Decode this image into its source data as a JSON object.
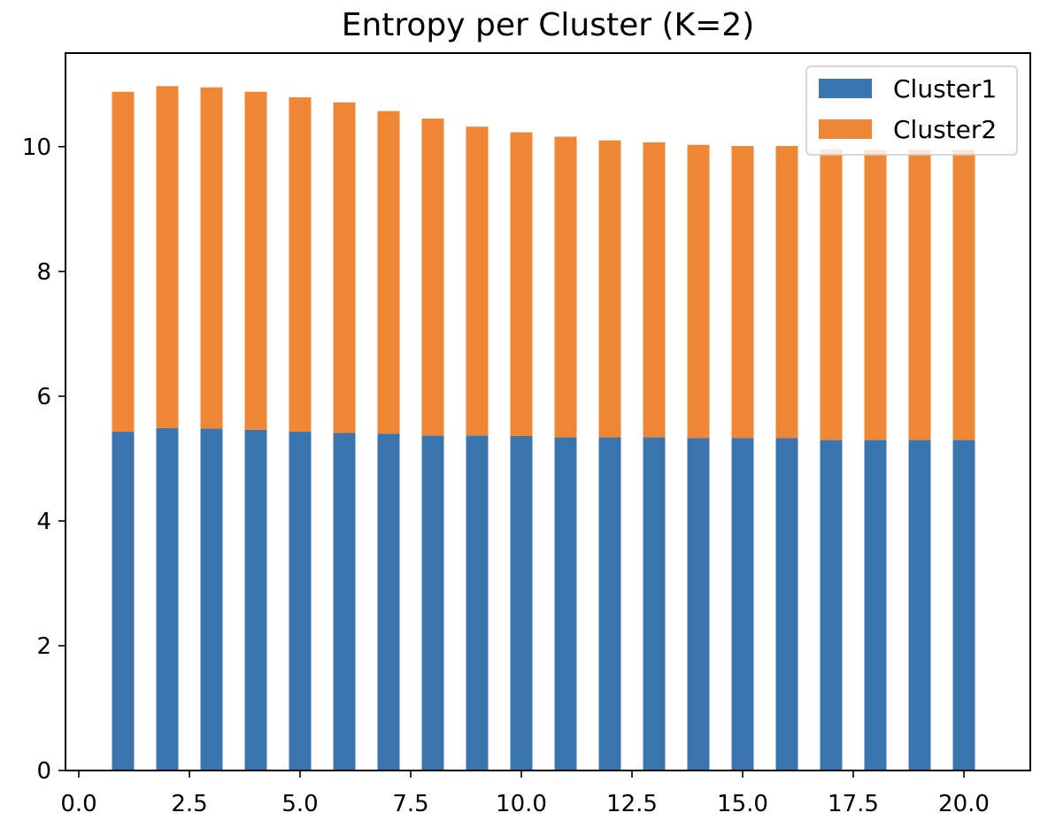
{
  "chart_data": {
    "type": "bar",
    "stacked": true,
    "title": "Entropy per Cluster (K=2)",
    "xlabel": "",
    "ylabel": "",
    "xlim": [
      -0.3,
      21.5
    ],
    "ylim": [
      0,
      11.5
    ],
    "x_ticks": [
      0.0,
      2.5,
      5.0,
      7.5,
      10.0,
      12.5,
      15.0,
      17.5,
      20.0
    ],
    "x_tick_labels": [
      "0.0",
      "2.5",
      "5.0",
      "7.5",
      "10.0",
      "12.5",
      "15.0",
      "17.5",
      "20.0"
    ],
    "y_ticks": [
      0,
      2,
      4,
      6,
      8,
      10
    ],
    "y_tick_labels": [
      "0",
      "2",
      "4",
      "6",
      "8",
      "10"
    ],
    "bar_width": 0.5,
    "grid": false,
    "legend_position": "top-right",
    "x": [
      1,
      2,
      3,
      4,
      5,
      6,
      7,
      8,
      9,
      10,
      11,
      12,
      13,
      14,
      15,
      16,
      17,
      18,
      19,
      20
    ],
    "series": [
      {
        "name": "Cluster1",
        "color": "#3a75b0",
        "values": [
          5.43,
          5.49,
          5.48,
          5.46,
          5.43,
          5.41,
          5.4,
          5.37,
          5.37,
          5.36,
          5.34,
          5.34,
          5.34,
          5.33,
          5.33,
          5.33,
          5.3,
          5.3,
          5.3,
          5.3
        ]
      },
      {
        "name": "Cluster2",
        "color": "#ef8636",
        "values": [
          5.45,
          5.48,
          5.47,
          5.42,
          5.36,
          5.3,
          5.17,
          5.08,
          4.95,
          4.87,
          4.82,
          4.76,
          4.73,
          4.7,
          4.68,
          4.68,
          4.66,
          4.65,
          4.65,
          4.65
        ]
      }
    ]
  }
}
